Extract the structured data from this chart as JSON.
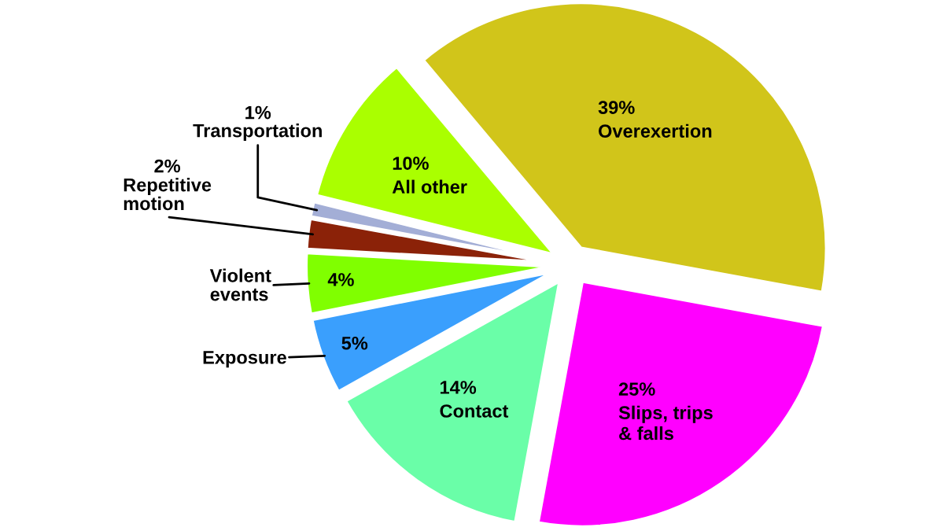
{
  "chart_data": {
    "type": "pie",
    "categories": [
      "Overexertion",
      "Slips, trips\n& falls",
      "Contact",
      "Exposure",
      "Violent\nevents",
      "Repetitive\nmotion",
      "Transportation",
      "All other"
    ],
    "values": [
      39,
      25,
      14,
      5,
      4,
      2,
      1,
      10
    ],
    "value_labels": [
      "39%",
      "25%",
      "14%",
      "5%",
      "4%",
      "2%",
      "1%",
      "10%"
    ],
    "colors": [
      "#d1c51a",
      "#ff00ff",
      "#6afea8",
      "#3a9ffd",
      "#80ff00",
      "#8b2208",
      "#a3aed6",
      "#aaff00"
    ]
  }
}
